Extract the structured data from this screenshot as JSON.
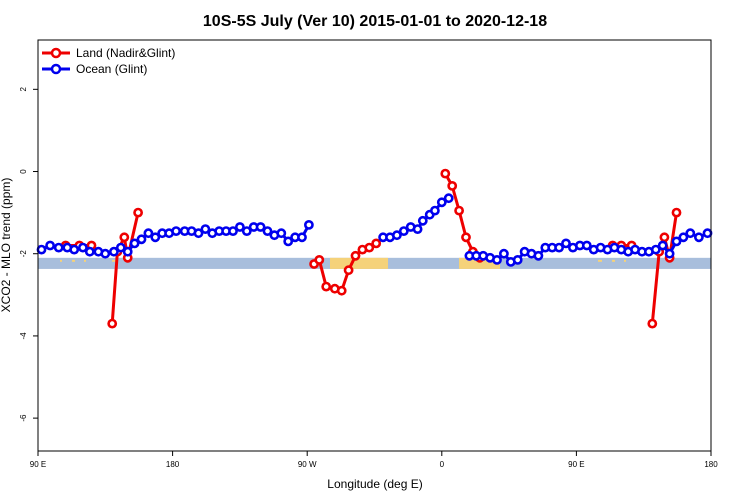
{
  "chart_data": {
    "type": "line",
    "title": "10S-5S July (Ver 10)   2015-01-01 to 2020-12-18",
    "xlabel": "Longitude (deg E)",
    "ylabel": "XCO2 - MLO trend (ppm)",
    "xlim": [
      90,
      480
    ],
    "ylim": [
      -6.8,
      3.2
    ],
    "x_ticks": [
      {
        "value": 90,
        "label": "90 E"
      },
      {
        "value": 168,
        "label": "180"
      },
      {
        "value": 246,
        "label": "90 W"
      },
      {
        "value": 324,
        "label": "0"
      },
      {
        "value": 402,
        "label": "90 E"
      },
      {
        "value": 480,
        "label": "180"
      }
    ],
    "y_ticks": [
      {
        "value": 2,
        "label": "2"
      },
      {
        "value": 0,
        "label": "0"
      },
      {
        "value": -2,
        "label": "-2"
      },
      {
        "value": -4,
        "label": "-4"
      },
      {
        "value": -6,
        "label": "-6"
      }
    ],
    "legend_position": "top-left",
    "grid": false,
    "series": [
      {
        "name": "Land (Nadir&Glint)",
        "color": "#ee0000",
        "segments": [
          [
            [
              106,
              -1.8
            ],
            [
              114,
              -1.8
            ],
            [
              121,
              -1.8
            ]
          ],
          [
            [
              133,
              -3.7
            ],
            [
              136,
              -1.95
            ],
            [
              140,
              -1.6
            ],
            [
              142,
              -2.1
            ],
            [
              148,
              -1.0
            ]
          ],
          [
            [
              250,
              -2.25
            ],
            [
              253,
              -2.15
            ],
            [
              257,
              -2.8
            ],
            [
              262,
              -2.85
            ],
            [
              266,
              -2.9
            ],
            [
              270,
              -2.4
            ],
            [
              274,
              -2.05
            ],
            [
              278,
              -1.9
            ],
            [
              282,
              -1.85
            ],
            [
              286,
              -1.75
            ]
          ],
          [
            [
              326,
              -0.05
            ],
            [
              330,
              -0.35
            ],
            [
              334,
              -0.95
            ],
            [
              338,
              -1.6
            ],
            [
              342,
              -1.95
            ],
            [
              346,
              -2.1
            ]
          ],
          [
            [
              423,
              -1.8
            ],
            [
              428,
              -1.8
            ],
            [
              434,
              -1.8
            ]
          ],
          [
            [
              446,
              -3.7
            ],
            [
              450,
              -1.95
            ],
            [
              453,
              -1.6
            ],
            [
              456,
              -2.1
            ],
            [
              460,
              -1.0
            ]
          ]
        ]
      },
      {
        "name": "Ocean (Glint)",
        "color": "#0000ee",
        "segments": [
          [
            [
              92,
              -1.9
            ],
            [
              97,
              -1.8
            ],
            [
              102,
              -1.85
            ],
            [
              107,
              -1.85
            ],
            [
              111,
              -1.9
            ],
            [
              116,
              -1.85
            ],
            [
              120,
              -1.95
            ],
            [
              125,
              -1.95
            ],
            [
              129,
              -2.0
            ],
            [
              134,
              -1.95
            ],
            [
              138,
              -1.85
            ],
            [
              142,
              -1.95
            ],
            [
              146,
              -1.75
            ],
            [
              150,
              -1.65
            ],
            [
              154,
              -1.5
            ],
            [
              158,
              -1.6
            ],
            [
              162,
              -1.5
            ],
            [
              166,
              -1.5
            ],
            [
              170,
              -1.45
            ],
            [
              175,
              -1.45
            ],
            [
              179,
              -1.45
            ],
            [
              183,
              -1.5
            ],
            [
              187,
              -1.4
            ],
            [
              191,
              -1.5
            ],
            [
              195,
              -1.45
            ],
            [
              199,
              -1.45
            ],
            [
              203,
              -1.45
            ],
            [
              207,
              -1.35
            ],
            [
              211,
              -1.45
            ],
            [
              215,
              -1.35
            ],
            [
              219,
              -1.35
            ],
            [
              223,
              -1.45
            ],
            [
              227,
              -1.55
            ],
            [
              231,
              -1.5
            ],
            [
              235,
              -1.7
            ],
            [
              239,
              -1.6
            ],
            [
              243,
              -1.6
            ],
            [
              247,
              -1.3
            ]
          ],
          [
            [
              290,
              -1.6
            ],
            [
              294,
              -1.6
            ],
            [
              298,
              -1.55
            ],
            [
              302,
              -1.45
            ],
            [
              306,
              -1.35
            ],
            [
              310,
              -1.4
            ],
            [
              313,
              -1.2
            ],
            [
              317,
              -1.05
            ],
            [
              320,
              -0.95
            ],
            [
              324,
              -0.75
            ],
            [
              328,
              -0.65
            ]
          ],
          [
            [
              340,
              -2.05
            ],
            [
              344,
              -2.05
            ],
            [
              348,
              -2.05
            ],
            [
              352,
              -2.1
            ],
            [
              356,
              -2.15
            ],
            [
              360,
              -2.0
            ],
            [
              364,
              -2.2
            ],
            [
              368,
              -2.15
            ],
            [
              372,
              -1.95
            ],
            [
              376,
              -2.0
            ],
            [
              380,
              -2.05
            ],
            [
              384,
              -1.85
            ],
            [
              388,
              -1.85
            ],
            [
              392,
              -1.85
            ],
            [
              396,
              -1.75
            ],
            [
              400,
              -1.85
            ],
            [
              404,
              -1.8
            ],
            [
              408,
              -1.8
            ],
            [
              412,
              -1.9
            ],
            [
              416,
              -1.85
            ],
            [
              420,
              -1.9
            ],
            [
              424,
              -1.85
            ],
            [
              428,
              -1.9
            ],
            [
              432,
              -1.95
            ],
            [
              436,
              -1.9
            ],
            [
              440,
              -1.95
            ],
            [
              444,
              -1.95
            ],
            [
              448,
              -1.9
            ],
            [
              452,
              -1.8
            ],
            [
              456,
              -2.0
            ],
            [
              460,
              -1.7
            ],
            [
              464,
              -1.6
            ],
            [
              468,
              -1.5
            ],
            [
              473,
              -1.6
            ],
            [
              478,
              -1.5
            ]
          ]
        ]
      }
    ]
  }
}
